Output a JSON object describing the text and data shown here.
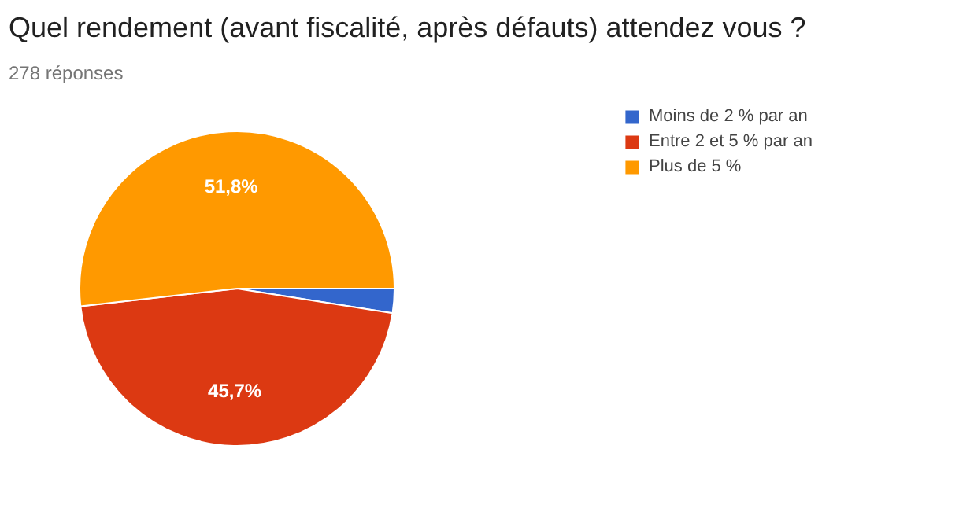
{
  "chart_data": {
    "type": "pie",
    "title": "Quel rendement (avant fiscalité, après défauts) attendez vous ?",
    "subtitle": "278 réponses",
    "categories": [
      "Moins de 2 % par an",
      "Entre 2 et 5 % par an",
      "Plus de 5 %"
    ],
    "values": [
      2.5,
      45.7,
      51.8
    ],
    "value_labels": [
      null,
      "45,7%",
      "51,8%"
    ],
    "colors": [
      "#3366cc",
      "#dc3912",
      "#ff9900"
    ],
    "legend": "right"
  }
}
